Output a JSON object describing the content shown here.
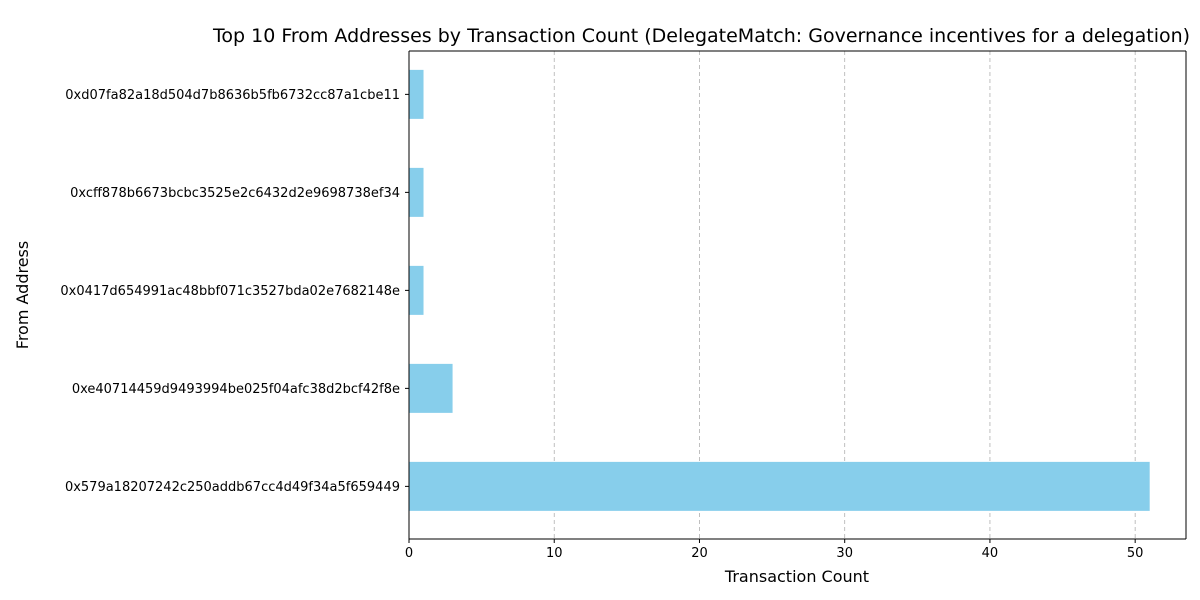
{
  "chart_data": {
    "type": "bar",
    "orientation": "horizontal",
    "title": "Top 10 From Addresses by Transaction Count (DelegateMatch: Governance incentives for a delegation)",
    "xlabel": "Transaction Count",
    "ylabel": "From Address",
    "categories": [
      "0x579a18207242c250addb67cc4d49f34a5f659449",
      "0xe40714459d9493994be025f04afc38d2bcf42f8e",
      "0x0417d654991ac48bbf071c3527bda02e7682148e",
      "0xcff878b6673bcbc3525e2c6432d2e9698738ef34",
      "0xd07fa82a18d504d7b8636b5fb6732cc87a1cbe11"
    ],
    "values": [
      51,
      3,
      1,
      1,
      1
    ],
    "xlim": [
      0,
      53.5
    ],
    "xticks": [
      0,
      10,
      20,
      30,
      40,
      50
    ],
    "grid": "x-dashed",
    "bar_color": "#87ceeb"
  }
}
